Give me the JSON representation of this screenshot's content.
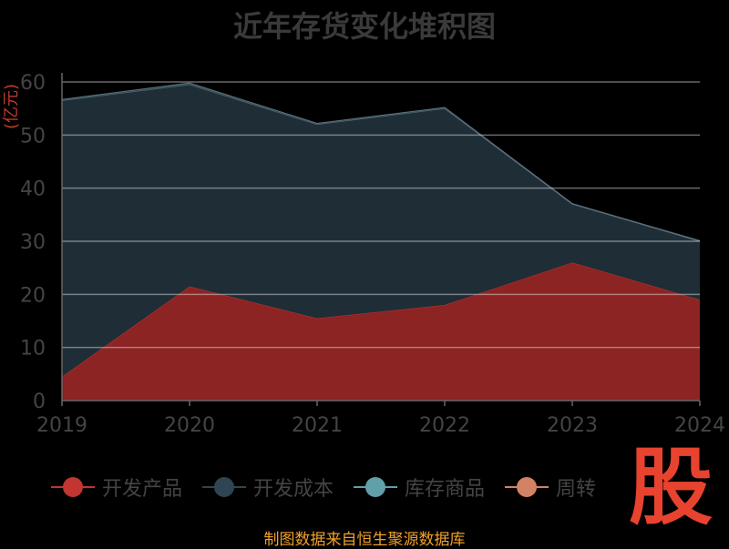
{
  "chart_data": {
    "type": "area",
    "title": "近年存货变化堆积图",
    "ylabel": "(亿元)",
    "x": [
      "2019",
      "2020",
      "2021",
      "2022",
      "2023",
      "2024"
    ],
    "ylim": [
      0,
      60
    ],
    "yticks": [
      0,
      10,
      20,
      30,
      40,
      50,
      60
    ],
    "stacked": true,
    "grid": true,
    "legend_position": "bottom",
    "series": [
      {
        "name": "开发产品",
        "color": "#c23531",
        "values": [
          4.5,
          21.5,
          15.5,
          18.0,
          26.0,
          19.0
        ]
      },
      {
        "name": "开发成本",
        "color": "#2f4554",
        "values": [
          52.0,
          38.0,
          36.5,
          37.0,
          11.0,
          11.0
        ]
      },
      {
        "name": "库存商品",
        "color": "#61a0a8",
        "values": [
          0.2,
          0.3,
          0.2,
          0.2,
          0.1,
          0.1
        ]
      },
      {
        "name": "周转",
        "color": "#d48265",
        "values": [
          0,
          0,
          0,
          0,
          0,
          0
        ]
      }
    ]
  },
  "watermark": "股",
  "source": "制图数据来自恒生聚源数据库"
}
